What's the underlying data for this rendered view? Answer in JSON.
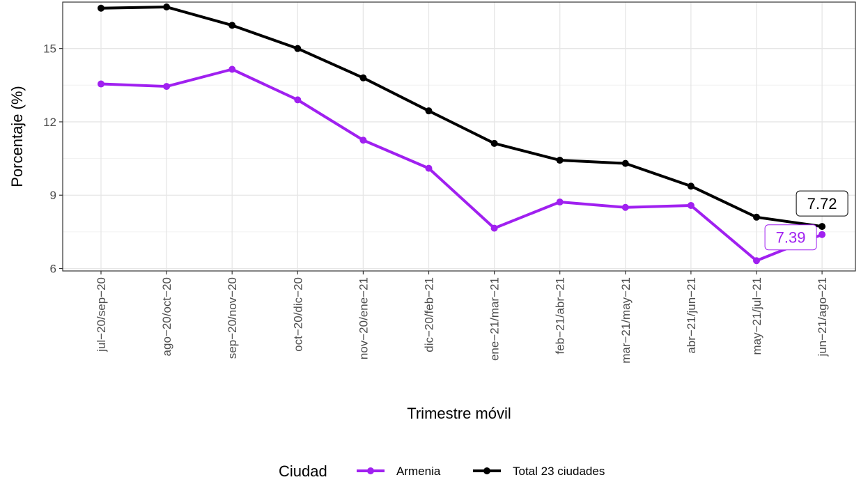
{
  "chart_data": {
    "type": "line",
    "xlabel": "Trimestre móvil",
    "ylabel": "Porcentaje (%)",
    "categories": [
      "jul−20/sep−20",
      "ago−20/oct−20",
      "sep−20/nov−20",
      "oct−20/dic−20",
      "nov−20/ene−21",
      "dic−20/feb−21",
      "ene−21/mar−21",
      "feb−21/abr−21",
      "mar−21/may−21",
      "abr−21/jun−21",
      "may−21/jul−21",
      "jun−21/ago−21"
    ],
    "yticks": [
      6,
      9,
      12,
      15
    ],
    "ylim": [
      5.9,
      16.9
    ],
    "grid": true,
    "legend_title": "Ciudad",
    "legend_position": "bottom",
    "series": [
      {
        "name": "Armenia",
        "color": "#A020F0",
        "values": [
          13.55,
          13.45,
          14.15,
          12.9,
          11.25,
          10.1,
          7.65,
          8.72,
          8.5,
          8.58,
          6.32,
          7.39
        ],
        "end_label": "7.39"
      },
      {
        "name": "Total 23 ciudades",
        "color": "#000000",
        "values": [
          16.65,
          16.7,
          15.95,
          15.0,
          13.8,
          12.45,
          11.12,
          10.43,
          10.3,
          9.37,
          8.1,
          7.72
        ],
        "end_label": "7.72"
      }
    ]
  }
}
